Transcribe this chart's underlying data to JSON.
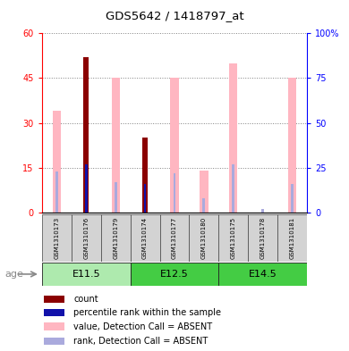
{
  "title": "GDS5642 / 1418797_at",
  "samples": [
    "GSM1310173",
    "GSM1310176",
    "GSM1310179",
    "GSM1310174",
    "GSM1310177",
    "GSM1310180",
    "GSM1310175",
    "GSM1310178",
    "GSM1310181"
  ],
  "age_groups": [
    {
      "label": "E11.5",
      "start": 0,
      "end": 3,
      "color": "#aeeaae"
    },
    {
      "label": "E12.5",
      "start": 3,
      "end": 6,
      "color": "#44cc44"
    },
    {
      "label": "E14.5",
      "start": 6,
      "end": 9,
      "color": "#44cc44"
    }
  ],
  "count_values": [
    0,
    52,
    0,
    25,
    0,
    0,
    0,
    0,
    0
  ],
  "percentile_values": [
    0,
    27,
    0,
    16,
    0,
    0,
    0,
    0,
    0
  ],
  "value_absent": [
    34,
    0,
    45,
    0,
    45,
    14,
    50,
    0,
    45
  ],
  "rank_absent": [
    23,
    0,
    17,
    0,
    22,
    8,
    27,
    2,
    16
  ],
  "ylim_left": [
    0,
    60
  ],
  "ylim_right": [
    0,
    100
  ],
  "yticks_left": [
    0,
    15,
    30,
    45,
    60
  ],
  "ytick_labels_left": [
    "0",
    "15",
    "30",
    "45",
    "60"
  ],
  "yticks_right": [
    0,
    25,
    50,
    75,
    100
  ],
  "ytick_labels_right": [
    "0",
    "25",
    "50",
    "75",
    "100%"
  ],
  "count_color": "#8B0000",
  "percentile_color": "#1111AA",
  "value_absent_color": "#FFB6C1",
  "rank_absent_color": "#AAAADD",
  "age_label": "age",
  "legend": [
    {
      "label": "count",
      "color": "#8B0000"
    },
    {
      "label": "percentile rank within the sample",
      "color": "#1111AA"
    },
    {
      "label": "value, Detection Call = ABSENT",
      "color": "#FFB6C1"
    },
    {
      "label": "rank, Detection Call = ABSENT",
      "color": "#AAAADD"
    }
  ]
}
